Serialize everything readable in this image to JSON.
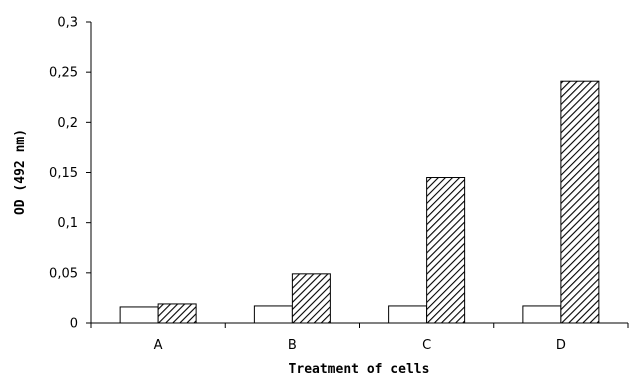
{
  "chart_data": {
    "type": "bar",
    "title": "",
    "xlabel": "Treatment of cells",
    "ylabel": "OD (492 nm)",
    "categories": [
      "A",
      "B",
      "C",
      "D"
    ],
    "ylim": [
      0,
      0.3
    ],
    "yticks": [
      0,
      0.05,
      0.1,
      0.15,
      0.2,
      0.25,
      0.3
    ],
    "ytick_labels": [
      "0",
      "0,05",
      "0,1",
      "0,15",
      "0,2",
      "0,25",
      "0,3"
    ],
    "grid": false,
    "legend": "none",
    "series": [
      {
        "fill": "#ffffff",
        "pattern": "none",
        "values": [
          0.016,
          0.017,
          0.017,
          0.017
        ]
      },
      {
        "fill": "#ffffff",
        "pattern": "diagonal-hatch",
        "values": [
          0.019,
          0.049,
          0.145,
          0.241
        ]
      }
    ]
  }
}
